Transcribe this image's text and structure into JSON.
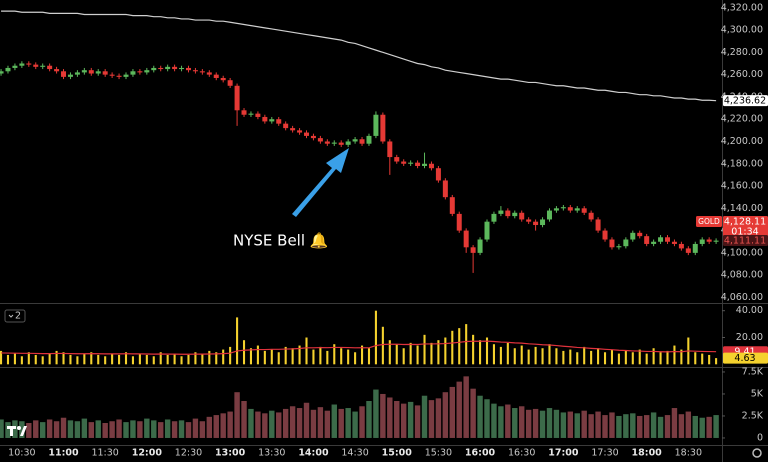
{
  "chart_data": [
    {
      "type": "candlestick",
      "categories": [
        null,
        null,
        null,
        "10:30",
        null,
        null,
        null,
        null,
        null,
        "11:00",
        null,
        null,
        null,
        null,
        null,
        "11:30",
        null,
        null,
        null,
        null,
        null,
        "12:00",
        null,
        null,
        null,
        null,
        null,
        "12:30",
        null,
        null,
        null,
        null,
        null,
        "13:00",
        null,
        null,
        null,
        null,
        null,
        "13:30",
        null,
        null,
        null,
        null,
        null,
        "14:00",
        null,
        null,
        null,
        null,
        null,
        "14:30",
        null,
        null,
        null,
        null,
        null,
        "15:00",
        null,
        null,
        null,
        null,
        null,
        "15:30",
        null,
        null,
        null,
        null,
        null,
        "16:00",
        null,
        null,
        null,
        null,
        null,
        "16:30",
        null,
        null,
        null,
        null,
        null,
        "17:00",
        null,
        null,
        null,
        null,
        null,
        "17:30",
        null,
        null,
        null,
        null,
        null,
        "18:00",
        null,
        null,
        null,
        null,
        null,
        "18:30",
        null,
        null,
        null,
        null
      ],
      "open": [
        4261,
        4263,
        4266,
        4268,
        4270,
        4269,
        4267,
        4268,
        4265,
        4263,
        4258,
        4260,
        4262,
        4264,
        4261,
        4263,
        4260,
        4259,
        4258,
        4260,
        4263,
        4262,
        4264,
        4266,
        4265,
        4267,
        4265,
        4266,
        4264,
        4263,
        4262,
        4260,
        4257,
        4255,
        4250,
        4228,
        4224,
        4225,
        4222,
        4218,
        4220,
        4216,
        4212,
        4210,
        4208,
        4205,
        4203,
        4200,
        4198,
        4199,
        4197,
        4200,
        4202,
        4198,
        4205,
        4224,
        4200,
        4186,
        4182,
        4180,
        4181,
        4178,
        4180,
        4176,
        4165,
        4150,
        4135,
        4120,
        4105,
        4100,
        4112,
        4128,
        4135,
        4138,
        4133,
        4136,
        4130,
        4128,
        4125,
        4130,
        4138,
        4140,
        4141,
        4138,
        4140,
        4136,
        4130,
        4120,
        4112,
        4105,
        4106,
        4112,
        4118,
        4115,
        4108,
        4110,
        4114,
        4110,
        4108,
        4104,
        4100,
        4108,
        4112,
        4110
      ],
      "high": [
        4265,
        4268,
        4270,
        4272,
        4272,
        4271,
        4270,
        4270,
        4267,
        4265,
        4262,
        4264,
        4266,
        4266,
        4265,
        4265,
        4262,
        4261,
        4262,
        4265,
        4265,
        4266,
        4268,
        4268,
        4269,
        4269,
        4268,
        4268,
        4266,
        4265,
        4264,
        4262,
        4259,
        4257,
        4252,
        4230,
        4227,
        4227,
        4224,
        4222,
        4222,
        4218,
        4214,
        4212,
        4210,
        4207,
        4205,
        4202,
        4201,
        4201,
        4202,
        4204,
        4204,
        4207,
        4227,
        4226,
        4202,
        4188,
        4184,
        4183,
        4183,
        4190,
        4182,
        4178,
        4167,
        4152,
        4137,
        4122,
        4107,
        4114,
        4130,
        4137,
        4142,
        4140,
        4138,
        4138,
        4132,
        4130,
        4132,
        4140,
        4142,
        4143,
        4143,
        4142,
        4142,
        4138,
        4132,
        4122,
        4114,
        4108,
        4114,
        4120,
        4120,
        4117,
        4112,
        4116,
        4116,
        4112,
        4110,
        4106,
        4110,
        4114,
        4114,
        4113
      ],
      "low": [
        4259,
        4261,
        4264,
        4266,
        4267,
        4265,
        4265,
        4263,
        4261,
        4256,
        4256,
        4258,
        4260,
        4259,
        4259,
        4258,
        4257,
        4256,
        4256,
        4258,
        4260,
        4260,
        4262,
        4263,
        4263,
        4263,
        4263,
        4262,
        4261,
        4260,
        4258,
        4255,
        4253,
        4248,
        4214,
        4222,
        4222,
        4220,
        4216,
        4216,
        4214,
        4210,
        4208,
        4206,
        4203,
        4201,
        4198,
        4196,
        4196,
        4195,
        4195,
        4198,
        4196,
        4196,
        4203,
        4198,
        4170,
        4180,
        4178,
        4178,
        4176,
        4176,
        4174,
        4163,
        4148,
        4133,
        4118,
        4100,
        4082,
        4098,
        4110,
        4126,
        4133,
        4131,
        4131,
        4128,
        4126,
        4120,
        4123,
        4128,
        4136,
        4138,
        4136,
        4136,
        4134,
        4128,
        4118,
        4110,
        4103,
        4103,
        4104,
        4110,
        4113,
        4106,
        4106,
        4108,
        4108,
        4106,
        4102,
        4098,
        4098,
        4106,
        4108,
        4108
      ],
      "close": [
        4263,
        4266,
        4268,
        4270,
        4269,
        4267,
        4268,
        4265,
        4263,
        4258,
        4260,
        4262,
        4264,
        4261,
        4263,
        4260,
        4259,
        4258,
        4260,
        4263,
        4262,
        4264,
        4266,
        4265,
        4267,
        4265,
        4266,
        4264,
        4263,
        4262,
        4260,
        4257,
        4255,
        4250,
        4228,
        4224,
        4225,
        4222,
        4218,
        4220,
        4216,
        4212,
        4210,
        4208,
        4205,
        4203,
        4200,
        4198,
        4199,
        4197,
        4200,
        4202,
        4198,
        4205,
        4224,
        4200,
        4186,
        4182,
        4180,
        4181,
        4178,
        4180,
        4176,
        4165,
        4150,
        4135,
        4120,
        4105,
        4100,
        4112,
        4128,
        4135,
        4138,
        4133,
        4136,
        4130,
        4128,
        4125,
        4130,
        4138,
        4140,
        4141,
        4138,
        4140,
        4136,
        4130,
        4120,
        4112,
        4105,
        4106,
        4112,
        4118,
        4115,
        4108,
        4110,
        4114,
        4110,
        4108,
        4104,
        4100,
        4108,
        4112,
        4110,
        4111
      ],
      "up_color": "#5cb85c",
      "down_color": "#e53935",
      "ma": {
        "color": "#cfcfcf",
        "values": [
          4317,
          4317,
          4317,
          4316,
          4316,
          4316,
          4316,
          4315,
          4315,
          4315,
          4315,
          4315,
          4314,
          4314,
          4314,
          4314,
          4314,
          4314,
          4314,
          4313,
          4313,
          4313,
          4312,
          4312,
          4311,
          4311,
          4310,
          4310,
          4309,
          4309,
          4309,
          4308,
          4308,
          4307,
          4306,
          4305,
          4304,
          4303,
          4302,
          4301,
          4300,
          4299,
          4298,
          4297,
          4296,
          4295,
          4294,
          4293,
          4292,
          4291,
          4289,
          4288,
          4286,
          4284,
          4282,
          4280,
          4278,
          4276,
          4274,
          4272,
          4270,
          4269,
          4267,
          4266,
          4264,
          4263,
          4262,
          4261,
          4260,
          4259,
          4258,
          4257,
          4256,
          4256,
          4255,
          4254,
          4253,
          4253,
          4252,
          4251,
          4250,
          4250,
          4249,
          4248,
          4248,
          4247,
          4246,
          4246,
          4245,
          4244,
          4244,
          4243,
          4242,
          4242,
          4241,
          4241,
          4240,
          4239,
          4239,
          4238,
          4238,
          4237,
          4237,
          4236.62
        ]
      },
      "ylim": [
        4055,
        4327
      ],
      "yticks": [
        {
          "value": 4060,
          "label": "4,060.00"
        },
        {
          "value": 4080,
          "label": "4,080.00"
        },
        {
          "value": 4100,
          "label": "4,100.00"
        },
        {
          "value": 4120,
          "label": "4,120.00"
        },
        {
          "value": 4140,
          "label": "4,140.00"
        },
        {
          "value": 4160,
          "label": "4,160.00"
        },
        {
          "value": 4180,
          "label": "4,180.00"
        },
        {
          "value": 4200,
          "label": "4,200.00"
        },
        {
          "value": 4220,
          "label": "4,220.00"
        },
        {
          "value": 4240,
          "label": "4,240.00"
        },
        {
          "value": 4260,
          "label": "4,260.00"
        },
        {
          "value": 4280,
          "label": "4,280.00"
        },
        {
          "value": 4300,
          "label": "4,300.00"
        },
        {
          "value": 4320,
          "label": "4,320.00"
        }
      ],
      "price_markers": [
        {
          "value": 4236.62,
          "label": "4,236.62",
          "color": "#ffffff",
          "text_color": "#000000"
        },
        {
          "value": 4128.11,
          "label": "4,128.11",
          "color": "#e53935",
          "text_color": "#ffffff",
          "symbol": "GOLD",
          "countdown": "01:34"
        },
        {
          "value": 4111.11,
          "label": "4,111.11",
          "color": "#4a1416",
          "text_color": "#ef5350"
        }
      ],
      "annotation": "NYSE Bell 🔔"
    },
    {
      "type": "bar",
      "pane_label": "2",
      "color": "#f5d22e",
      "values": [
        10,
        7,
        8,
        6,
        9,
        7,
        6,
        8,
        10,
        9,
        7,
        6,
        8,
        9,
        7,
        6,
        8,
        7,
        9,
        6,
        8,
        7,
        6,
        9,
        7,
        8,
        6,
        7,
        9,
        8,
        10,
        9,
        11,
        13,
        35,
        18,
        12,
        14,
        10,
        11,
        9,
        13,
        12,
        14,
        20,
        11,
        13,
        10,
        15,
        12,
        11,
        9,
        14,
        12,
        40,
        28,
        18,
        15,
        12,
        16,
        14,
        22,
        16,
        18,
        20,
        25,
        27,
        30,
        22,
        18,
        20,
        15,
        13,
        16,
        12,
        14,
        11,
        13,
        12,
        15,
        12,
        10,
        11,
        9,
        13,
        10,
        12,
        9,
        11,
        8,
        10,
        9,
        11,
        8,
        12,
        9,
        10,
        14,
        11,
        20,
        9,
        8,
        7,
        4.63
      ],
      "line": {
        "color": "#e0323c",
        "values": [
          8.5,
          8.4,
          8.3,
          8.2,
          8.2,
          8.1,
          8,
          8,
          8.1,
          8.1,
          8,
          7.9,
          7.9,
          8,
          7.9,
          7.8,
          7.8,
          7.8,
          7.9,
          7.8,
          7.8,
          7.7,
          7.6,
          7.7,
          7.6,
          7.6,
          7.5,
          7.5,
          7.6,
          7.6,
          7.7,
          7.8,
          8,
          8.3,
          10,
          10.5,
          10.8,
          11,
          11,
          11.2,
          11.2,
          11.4,
          11.5,
          11.8,
          12.3,
          12.3,
          12.5,
          12.4,
          12.6,
          12.6,
          12.5,
          12.3,
          12.4,
          12.3,
          14,
          14.8,
          15,
          15,
          14.8,
          14.9,
          14.8,
          15.2,
          15.2,
          15.3,
          15.5,
          15.9,
          16.4,
          17,
          17.2,
          17.2,
          17.3,
          17,
          16.6,
          16.4,
          16,
          15.8,
          15.3,
          15,
          14.6,
          14.4,
          14,
          13.5,
          13.1,
          12.6,
          12.3,
          11.9,
          11.6,
          11.2,
          10.9,
          10.5,
          10.3,
          10,
          9.9,
          9.6,
          9.6,
          9.4,
          9.3,
          9.5,
          9.4,
          10,
          9.8,
          9.6,
          9.5,
          9.41
        ]
      },
      "ylim": [
        -2,
        45
      ],
      "yticks": [
        {
          "value": 20,
          "label": "20.00"
        },
        {
          "value": 40,
          "label": "40.00"
        }
      ],
      "price_markers": [
        {
          "value": 9.41,
          "label": "9.41",
          "color": "#e0323c",
          "text_color": "#ffffff"
        },
        {
          "value": 4.63,
          "label": "4.63",
          "color": "#f5d22e",
          "text_color": "#000000"
        }
      ]
    },
    {
      "type": "bar",
      "up_color": "#3c6b4a",
      "down_color": "#7a3c42",
      "values": [
        2100,
        1800,
        2000,
        1900,
        1700,
        2000,
        1800,
        2100,
        1900,
        2300,
        2000,
        1900,
        2200,
        1800,
        2000,
        1700,
        1900,
        2100,
        1800,
        2000,
        1900,
        2200,
        2000,
        1800,
        2100,
        1900,
        2000,
        1800,
        2200,
        1900,
        2400,
        2600,
        2800,
        3000,
        5200,
        4200,
        3300,
        3000,
        2800,
        3100,
        2900,
        3300,
        3600,
        3400,
        4000,
        3200,
        3500,
        3100,
        3800,
        3300,
        3400,
        3000,
        3600,
        4200,
        5500,
        5000,
        4600,
        4200,
        3900,
        4100,
        3700,
        4800,
        4300,
        4500,
        5200,
        5800,
        6400,
        7000,
        5600,
        4800,
        4400,
        3900,
        3600,
        3800,
        3400,
        3600,
        3200,
        3300,
        3100,
        3400,
        3200,
        2900,
        3000,
        2800,
        3100,
        2700,
        3000,
        2600,
        2900,
        2500,
        2700,
        2800,
        2500,
        2600,
        2900,
        2400,
        2600,
        3400,
        2700,
        3000,
        2500,
        2300,
        2400,
        2600
      ],
      "ylim": [
        -800,
        7950
      ],
      "yticks": [
        0,
        {
          "value": 2500,
          "label": "2.5K"
        },
        {
          "value": 5000,
          "label": "5K"
        },
        {
          "value": 7500,
          "label": "7.5K"
        }
      ]
    }
  ]
}
